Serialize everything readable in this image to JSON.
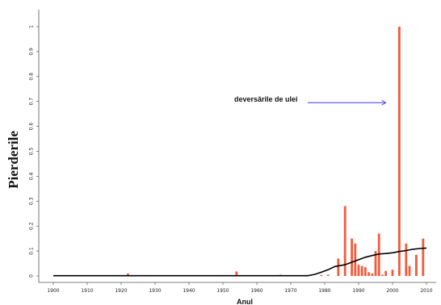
{
  "chart_data": {
    "type": "bar",
    "xlabel": "Anul",
    "ylabel": "Pierderile",
    "xlim": [
      1898,
      2012
    ],
    "ylim": [
      0,
      1.05
    ],
    "x_ticks": [
      1900,
      1910,
      1920,
      1930,
      1940,
      1950,
      1960,
      1970,
      1980,
      1990,
      2000,
      2010
    ],
    "y_ticks": [
      0,
      0.1,
      0.2,
      0.3,
      0.4,
      0.5,
      0.6,
      0.7,
      0.8,
      0.9,
      1
    ],
    "bar_color": "#f25c3c",
    "line_color": "#000000",
    "annotation": {
      "text": "deversările de ulei",
      "arrow_color": "#3b3bf0",
      "x_text": 1975,
      "x_end": 1998,
      "y": 0.695
    },
    "series": [
      {
        "kind": "bar",
        "x": [
          1922,
          1954,
          1967,
          1979,
          1981,
          1984,
          1986,
          1988,
          1989,
          1990,
          1991,
          1992,
          1993,
          1994,
          1995,
          1996,
          1997,
          1998,
          2000,
          2002,
          2004,
          2005,
          2007,
          2009
        ],
        "values": [
          0.01,
          0.018,
          0.005,
          0.004,
          0.005,
          0.07,
          0.28,
          0.15,
          0.13,
          0.045,
          0.04,
          0.035,
          0.015,
          0.01,
          0.1,
          0.17,
          0.005,
          0.02,
          0.025,
          1.0,
          0.13,
          0.04,
          0.085,
          0.15
        ]
      },
      {
        "kind": "line",
        "x": [
          1900,
          1975,
          1977,
          1979,
          1981,
          1983,
          1986,
          1988,
          1990,
          1992,
          1994,
          1996,
          1998,
          2000,
          2002,
          2004,
          2006,
          2008,
          2010
        ],
        "values": [
          0.001,
          0.001,
          0.006,
          0.015,
          0.025,
          0.038,
          0.045,
          0.055,
          0.065,
          0.075,
          0.082,
          0.088,
          0.09,
          0.093,
          0.098,
          0.102,
          0.107,
          0.11,
          0.112
        ]
      }
    ]
  }
}
